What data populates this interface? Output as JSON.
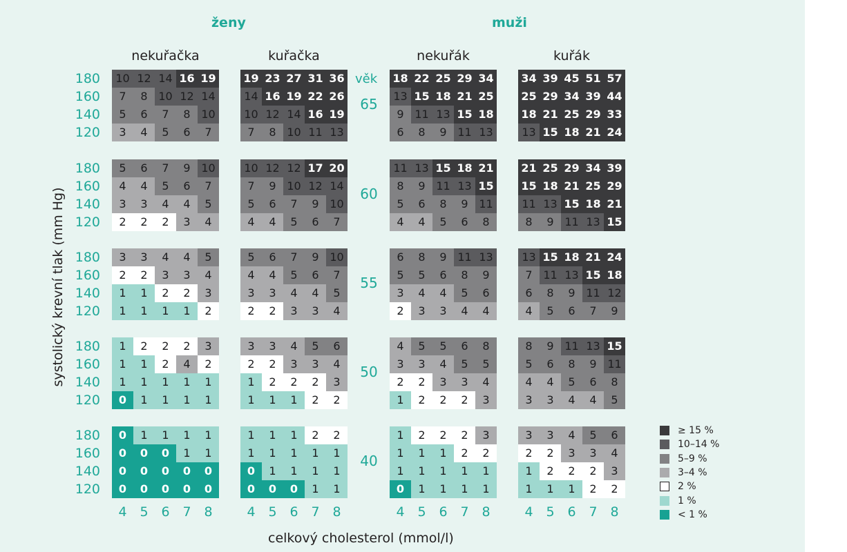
{
  "chart_data": {
    "type": "heatmap",
    "sex_labels": [
      "ženy",
      "muži"
    ],
    "group_labels": [
      "nekuřačka",
      "kuřačka",
      "nekuřák",
      "kuřák"
    ],
    "age_header": "věk",
    "ages": [
      "65",
      "60",
      "55",
      "50",
      "40"
    ],
    "bp_labels": [
      "180",
      "160",
      "140",
      "120"
    ],
    "chol_labels": [
      "4",
      "5",
      "6",
      "7",
      "8"
    ],
    "ylabel": "systolický krevní tlak (mm Hg)",
    "xlabel": "celkový cholesterol (mmol/l)",
    "legend": [
      {
        "label": "≥ 15 %",
        "color": "#3a3a3c"
      },
      {
        "label": "10–14 %",
        "color": "#5b5b5e"
      },
      {
        "label": "5–9 %",
        "color": "#828284"
      },
      {
        "label": "3–4 %",
        "color": "#ababad"
      },
      {
        "label": "2 %",
        "color": "#ffffff"
      },
      {
        "label": "1 %",
        "color": "#9fd8cf"
      },
      {
        "label": "< 1 %",
        "color": "#17a293"
      }
    ],
    "values": [
      [
        [
          [
            "10",
            "12",
            "14",
            "16",
            "19"
          ],
          [
            "7",
            "8",
            "10",
            "12",
            "14"
          ],
          [
            "5",
            "6",
            "7",
            "8",
            "10"
          ],
          [
            "3",
            "4",
            "5",
            "6",
            "7"
          ]
        ],
        [
          [
            "19",
            "23",
            "27",
            "31",
            "36"
          ],
          [
            "14",
            "16",
            "19",
            "22",
            "26"
          ],
          [
            "10",
            "12",
            "14",
            "16",
            "19"
          ],
          [
            "7",
            "8",
            "10",
            "11",
            "13"
          ]
        ],
        [
          [
            "18",
            "22",
            "25",
            "29",
            "34"
          ],
          [
            "13",
            "15",
            "18",
            "21",
            "25"
          ],
          [
            "9",
            "11",
            "13",
            "15",
            "18"
          ],
          [
            "6",
            "8",
            "9",
            "11",
            "13"
          ]
        ],
        [
          [
            "34",
            "39",
            "45",
            "51",
            "57"
          ],
          [
            "25",
            "29",
            "34",
            "39",
            "44"
          ],
          [
            "18",
            "21",
            "25",
            "29",
            "33"
          ],
          [
            "13",
            "15",
            "18",
            "21",
            "24"
          ]
        ]
      ],
      [
        [
          [
            "5",
            "6",
            "7",
            "9",
            "10"
          ],
          [
            "4",
            "4",
            "5",
            "6",
            "7"
          ],
          [
            "3",
            "3",
            "4",
            "4",
            "5"
          ],
          [
            "2",
            "2",
            "2",
            "3",
            "4"
          ]
        ],
        [
          [
            "10",
            "12",
            "12",
            "17",
            "20"
          ],
          [
            "7",
            "9",
            "10",
            "12",
            "14"
          ],
          [
            "5",
            "6",
            "7",
            "9",
            "10"
          ],
          [
            "4",
            "4",
            "5",
            "6",
            "7"
          ]
        ],
        [
          [
            "11",
            "13",
            "15",
            "18",
            "21"
          ],
          [
            "8",
            "9",
            "11",
            "13",
            "15"
          ],
          [
            "5",
            "6",
            "8",
            "9",
            "11"
          ],
          [
            "4",
            "4",
            "5",
            "6",
            "8"
          ]
        ],
        [
          [
            "21",
            "25",
            "29",
            "34",
            "39"
          ],
          [
            "15",
            "18",
            "21",
            "25",
            "29"
          ],
          [
            "11",
            "13",
            "15",
            "18",
            "21"
          ],
          [
            "8",
            "9",
            "11",
            "13",
            "15"
          ]
        ]
      ],
      [
        [
          [
            "3",
            "3",
            "4",
            "4",
            "5"
          ],
          [
            "2",
            "2",
            "3",
            "3",
            "4"
          ],
          [
            "1",
            "1",
            "2",
            "2",
            "3"
          ],
          [
            "1",
            "1",
            "1",
            "1",
            "2"
          ]
        ],
        [
          [
            "5",
            "6",
            "7",
            "9",
            "10"
          ],
          [
            "4",
            "4",
            "5",
            "6",
            "7"
          ],
          [
            "3",
            "3",
            "4",
            "4",
            "5"
          ],
          [
            "2",
            "2",
            "3",
            "3",
            "4"
          ]
        ],
        [
          [
            "6",
            "8",
            "9",
            "11",
            "13"
          ],
          [
            "5",
            "5",
            "6",
            "8",
            "9"
          ],
          [
            "3",
            "4",
            "4",
            "5",
            "6"
          ],
          [
            "2",
            "3",
            "3",
            "4",
            "4"
          ]
        ],
        [
          [
            "13",
            "15",
            "18",
            "21",
            "24"
          ],
          [
            "7",
            "11",
            "13",
            "15",
            "18"
          ],
          [
            "6",
            "8",
            "9",
            "11",
            "12"
          ],
          [
            "4",
            "5",
            "6",
            "7",
            "9"
          ]
        ]
      ],
      [
        [
          [
            "1",
            "2",
            "2",
            "2",
            "3"
          ],
          [
            "1",
            "1",
            "2",
            "4",
            "2"
          ],
          [
            "1",
            "1",
            "1",
            "1",
            "1"
          ],
          [
            "0",
            "1",
            "1",
            "1",
            "1"
          ]
        ],
        [
          [
            "3",
            "3",
            "4",
            "5",
            "6"
          ],
          [
            "2",
            "2",
            "3",
            "3",
            "4"
          ],
          [
            "1",
            "2",
            "2",
            "2",
            "3"
          ],
          [
            "1",
            "1",
            "1",
            "2",
            "2"
          ]
        ],
        [
          [
            "4",
            "5",
            "5",
            "6",
            "8"
          ],
          [
            "3",
            "3",
            "4",
            "5",
            "5"
          ],
          [
            "2",
            "2",
            "3",
            "3",
            "4"
          ],
          [
            "1",
            "2",
            "2",
            "2",
            "3"
          ]
        ],
        [
          [
            "8",
            "9",
            "11",
            "13",
            "15"
          ],
          [
            "5",
            "6",
            "8",
            "9",
            "11"
          ],
          [
            "4",
            "4",
            "5",
            "6",
            "8"
          ],
          [
            "3",
            "3",
            "4",
            "4",
            "5"
          ]
        ]
      ],
      [
        [
          [
            "0",
            "1",
            "1",
            "1",
            "1"
          ],
          [
            "0",
            "0",
            "0",
            "1",
            "1"
          ],
          [
            "0",
            "0",
            "0",
            "0",
            "0"
          ],
          [
            "0",
            "0",
            "0",
            "0",
            "0"
          ]
        ],
        [
          [
            "1",
            "1",
            "1",
            "2",
            "2"
          ],
          [
            "1",
            "1",
            "1",
            "1",
            "1"
          ],
          [
            "0",
            "1",
            "1",
            "1",
            "1"
          ],
          [
            "0",
            "0",
            "0",
            "1",
            "1"
          ]
        ],
        [
          [
            "1",
            "2",
            "2",
            "2",
            "3"
          ],
          [
            "1",
            "1",
            "1",
            "2",
            "2"
          ],
          [
            "1",
            "1",
            "1",
            "1",
            "1"
          ],
          [
            "0",
            "1",
            "1",
            "1",
            "1"
          ]
        ],
        [
          [
            "3",
            "3",
            "4",
            "5",
            "6"
          ],
          [
            "2",
            "2",
            "3",
            "3",
            "4"
          ],
          [
            "1",
            "2",
            "2",
            "2",
            "3"
          ],
          [
            "1",
            "1",
            "1",
            "2",
            "2"
          ]
        ]
      ]
    ]
  }
}
